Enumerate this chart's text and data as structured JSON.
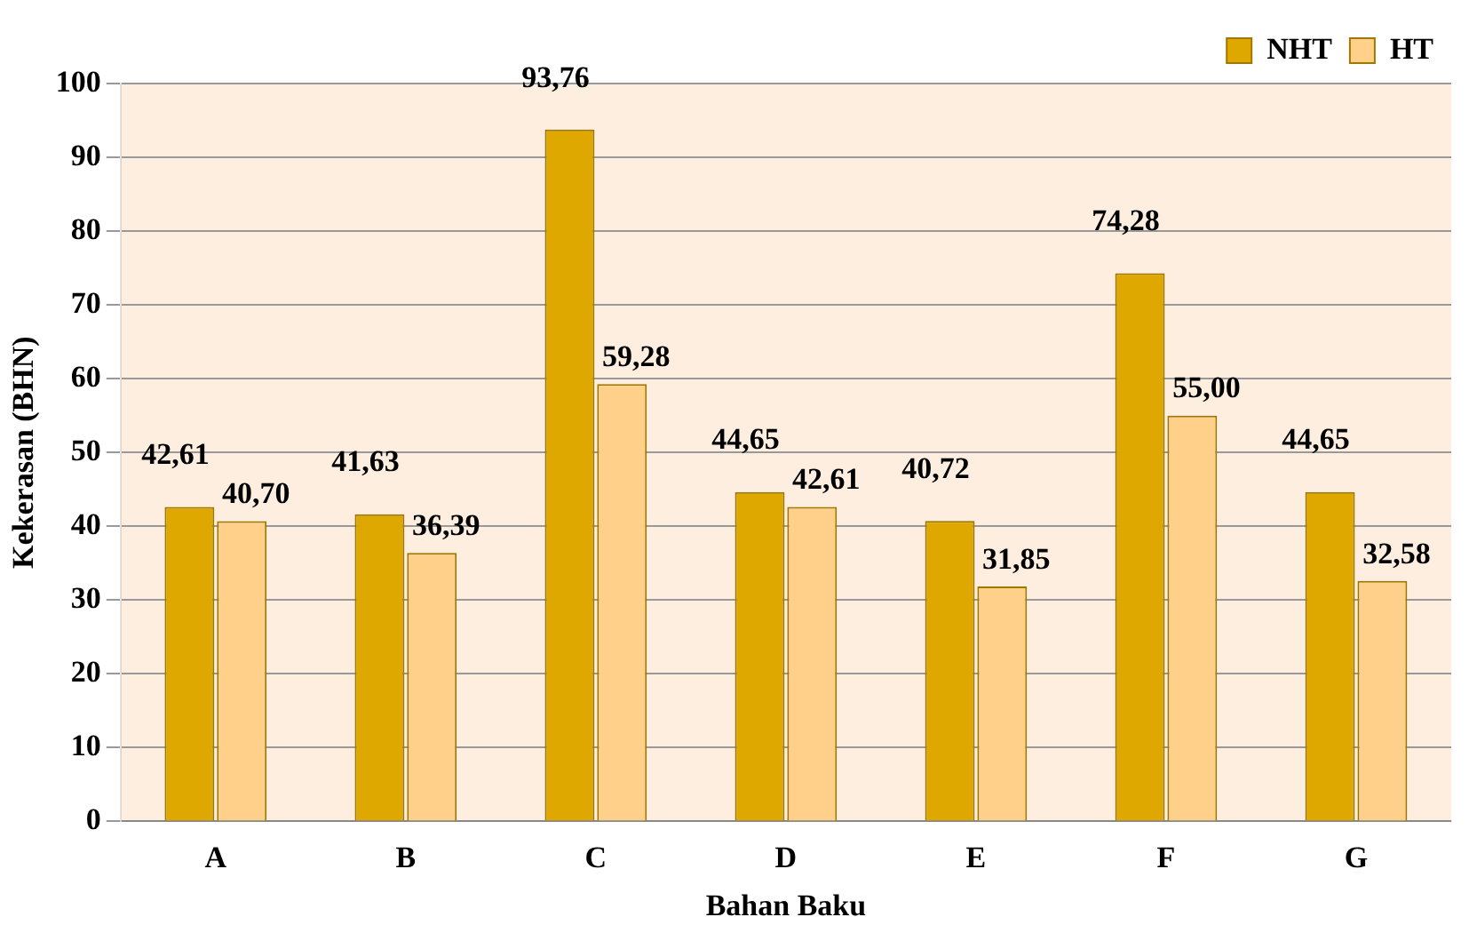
{
  "chart_data": {
    "type": "bar",
    "xlabel": "Bahan Baku",
    "ylabel": "Kekerasan (BHN)",
    "categories": [
      "A",
      "B",
      "C",
      "D",
      "E",
      "F",
      "G"
    ],
    "series": [
      {
        "name": "NHT",
        "color": "#dfa800",
        "values": [
          42.61,
          41.63,
          93.76,
          44.65,
          40.72,
          74.28,
          44.65
        ],
        "value_labels": [
          "42,61",
          "41,63",
          "93,76",
          "44,65",
          "40,72",
          "74,28",
          "44,65"
        ]
      },
      {
        "name": "HT",
        "color": "#ffd08a",
        "values": [
          40.7,
          36.39,
          59.28,
          42.61,
          31.85,
          55.0,
          32.58
        ],
        "value_labels": [
          "40,70",
          "36,39",
          "59,28",
          "42,61",
          "31,85",
          "55,00",
          "32,58"
        ]
      }
    ],
    "ylim": [
      0,
      100
    ],
    "yticks": [
      0,
      10,
      20,
      30,
      40,
      50,
      60,
      70,
      80,
      90,
      100
    ],
    "grid": "y",
    "legend": "top right"
  }
}
